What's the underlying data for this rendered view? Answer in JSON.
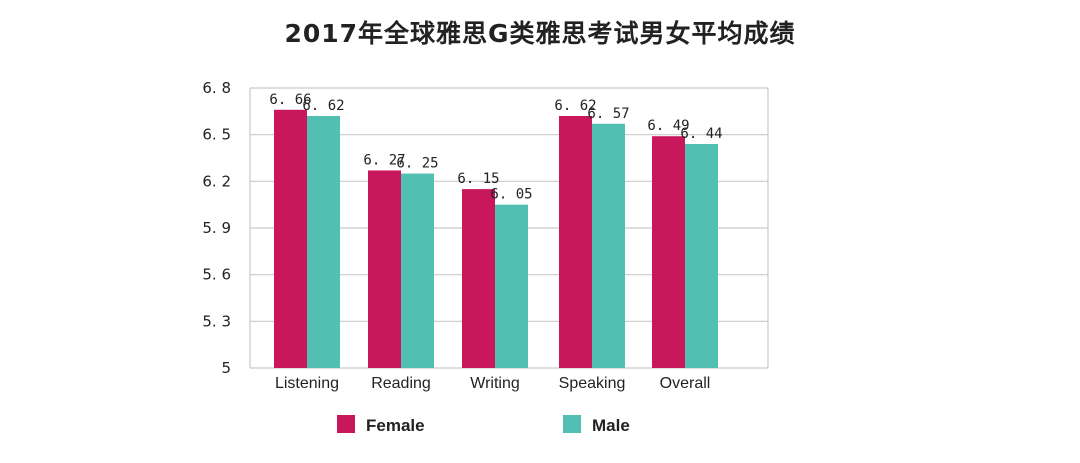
{
  "title": "2017年全球雅思G类雅思考试男女平均成绩",
  "chart_data": {
    "type": "bar",
    "title": "2017年全球雅思G类雅思考试男女平均成绩",
    "categories": [
      "Listening",
      "Reading",
      "Writing",
      "Speaking",
      "Overall"
    ],
    "series": [
      {
        "name": "Female",
        "values": [
          6.66,
          6.27,
          6.15,
          6.62,
          6.49
        ],
        "labels": [
          "6. 66",
          "6. 27",
          "6. 15",
          "6. 62",
          "6. 49"
        ],
        "color": "#C8175A"
      },
      {
        "name": "Male",
        "values": [
          6.62,
          6.25,
          6.05,
          6.57,
          6.44
        ],
        "labels": [
          "6. 62",
          "6. 25",
          "6. 05",
          "6. 57",
          "6. 44"
        ],
        "color": "#52BFB3"
      }
    ],
    "yticks": [
      5,
      5.3,
      5.6,
      5.9,
      6.2,
      6.5,
      6.8
    ],
    "ytick_labels": [
      "5",
      "5. 3",
      "5. 6",
      "5. 9",
      "6. 2",
      "6. 5",
      "6. 8"
    ],
    "ylim": [
      5,
      6.8
    ],
    "grid": true,
    "legend_position": "bottom",
    "xlabel": "",
    "ylabel": ""
  }
}
